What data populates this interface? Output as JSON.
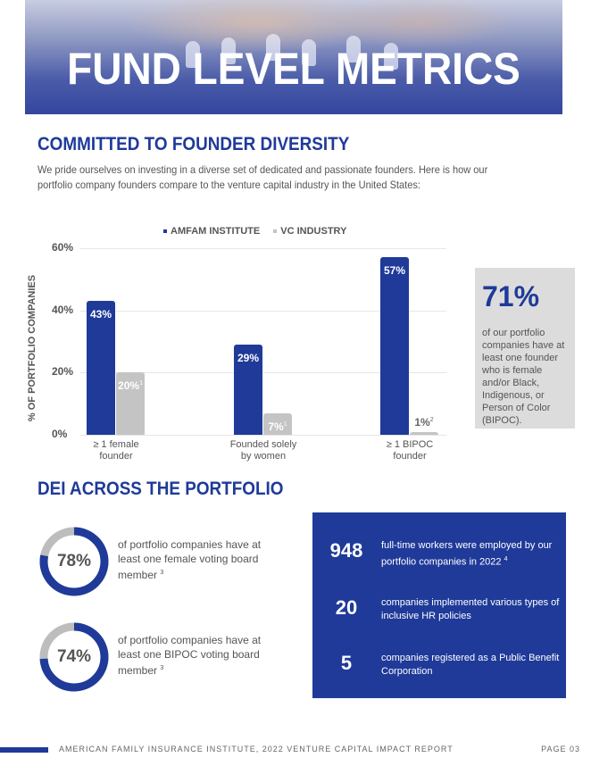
{
  "hero": {
    "title": "FUND LEVEL METRICS"
  },
  "section1": {
    "heading": "COMMITTED TO FOUNDER DIVERSITY",
    "intro": "We pride ourselves on investing in a diverse set of dedicated and passionate founders. Here is how our portfolio company founders compare to the venture capital industry in the United States:"
  },
  "chart_data": {
    "type": "bar",
    "categories": [
      "≥ 1 female founder",
      "Founded solely by women",
      "≥ 1 BIPOC founder"
    ],
    "category_lines": [
      [
        "≥ 1 female",
        "founder"
      ],
      [
        "Founded solely",
        "by women"
      ],
      [
        "≥ 1 BIPOC",
        "founder"
      ]
    ],
    "series": [
      {
        "name": "AMFAM INSTITUTE",
        "values": [
          43,
          29,
          57
        ],
        "labels": [
          "43%",
          "29%",
          "57%"
        ],
        "color": "#1f3a99"
      },
      {
        "name": "VC INDUSTRY",
        "values": [
          20,
          7,
          1
        ],
        "labels": [
          "20%",
          "7%",
          "1%"
        ],
        "footnotes": [
          "1",
          "1",
          "2"
        ],
        "color": "#c4c4c4"
      }
    ],
    "ylabel": "% OF PORTFOLIO COMPANIES",
    "yticks": [
      "0%",
      "20%",
      "40%",
      "60%"
    ],
    "ylim": [
      0,
      60
    ],
    "grid": true,
    "legend_position": "top"
  },
  "callout": {
    "value": "71%",
    "text": "of our portfolio companies have at least one founder who is female and/or Black, Indigenous, or Person of Color (BIPOC)."
  },
  "section2": {
    "heading": "DEI ACROSS THE PORTFOLIO",
    "donuts": [
      {
        "value": 78,
        "label": "78%",
        "text": "of portfolio companies have at least one female voting board member",
        "footnote": "3"
      },
      {
        "value": 74,
        "label": "74%",
        "text": "of portfolio companies have at least one BIPOC voting board member",
        "footnote": "3"
      }
    ],
    "stats": [
      {
        "value": "948",
        "text": "full-time workers were employed by our portfolio companies in 2022",
        "footnote": "4"
      },
      {
        "value": "20",
        "text": "companies implemented various types of inclusive HR policies",
        "footnote": ""
      },
      {
        "value": "5",
        "text": "companies registered as a Public Benefit Corporation",
        "footnote": ""
      }
    ]
  },
  "footer": {
    "text": "AMERICAN FAMILY INSURANCE INSTITUTE, 2022 VENTURE CAPITAL IMPACT REPORT",
    "page": "PAGE 03"
  },
  "colors": {
    "brand_blue": "#1f3a99",
    "gray": "#c4c4c4",
    "donut_track": "#bdbdbd"
  }
}
